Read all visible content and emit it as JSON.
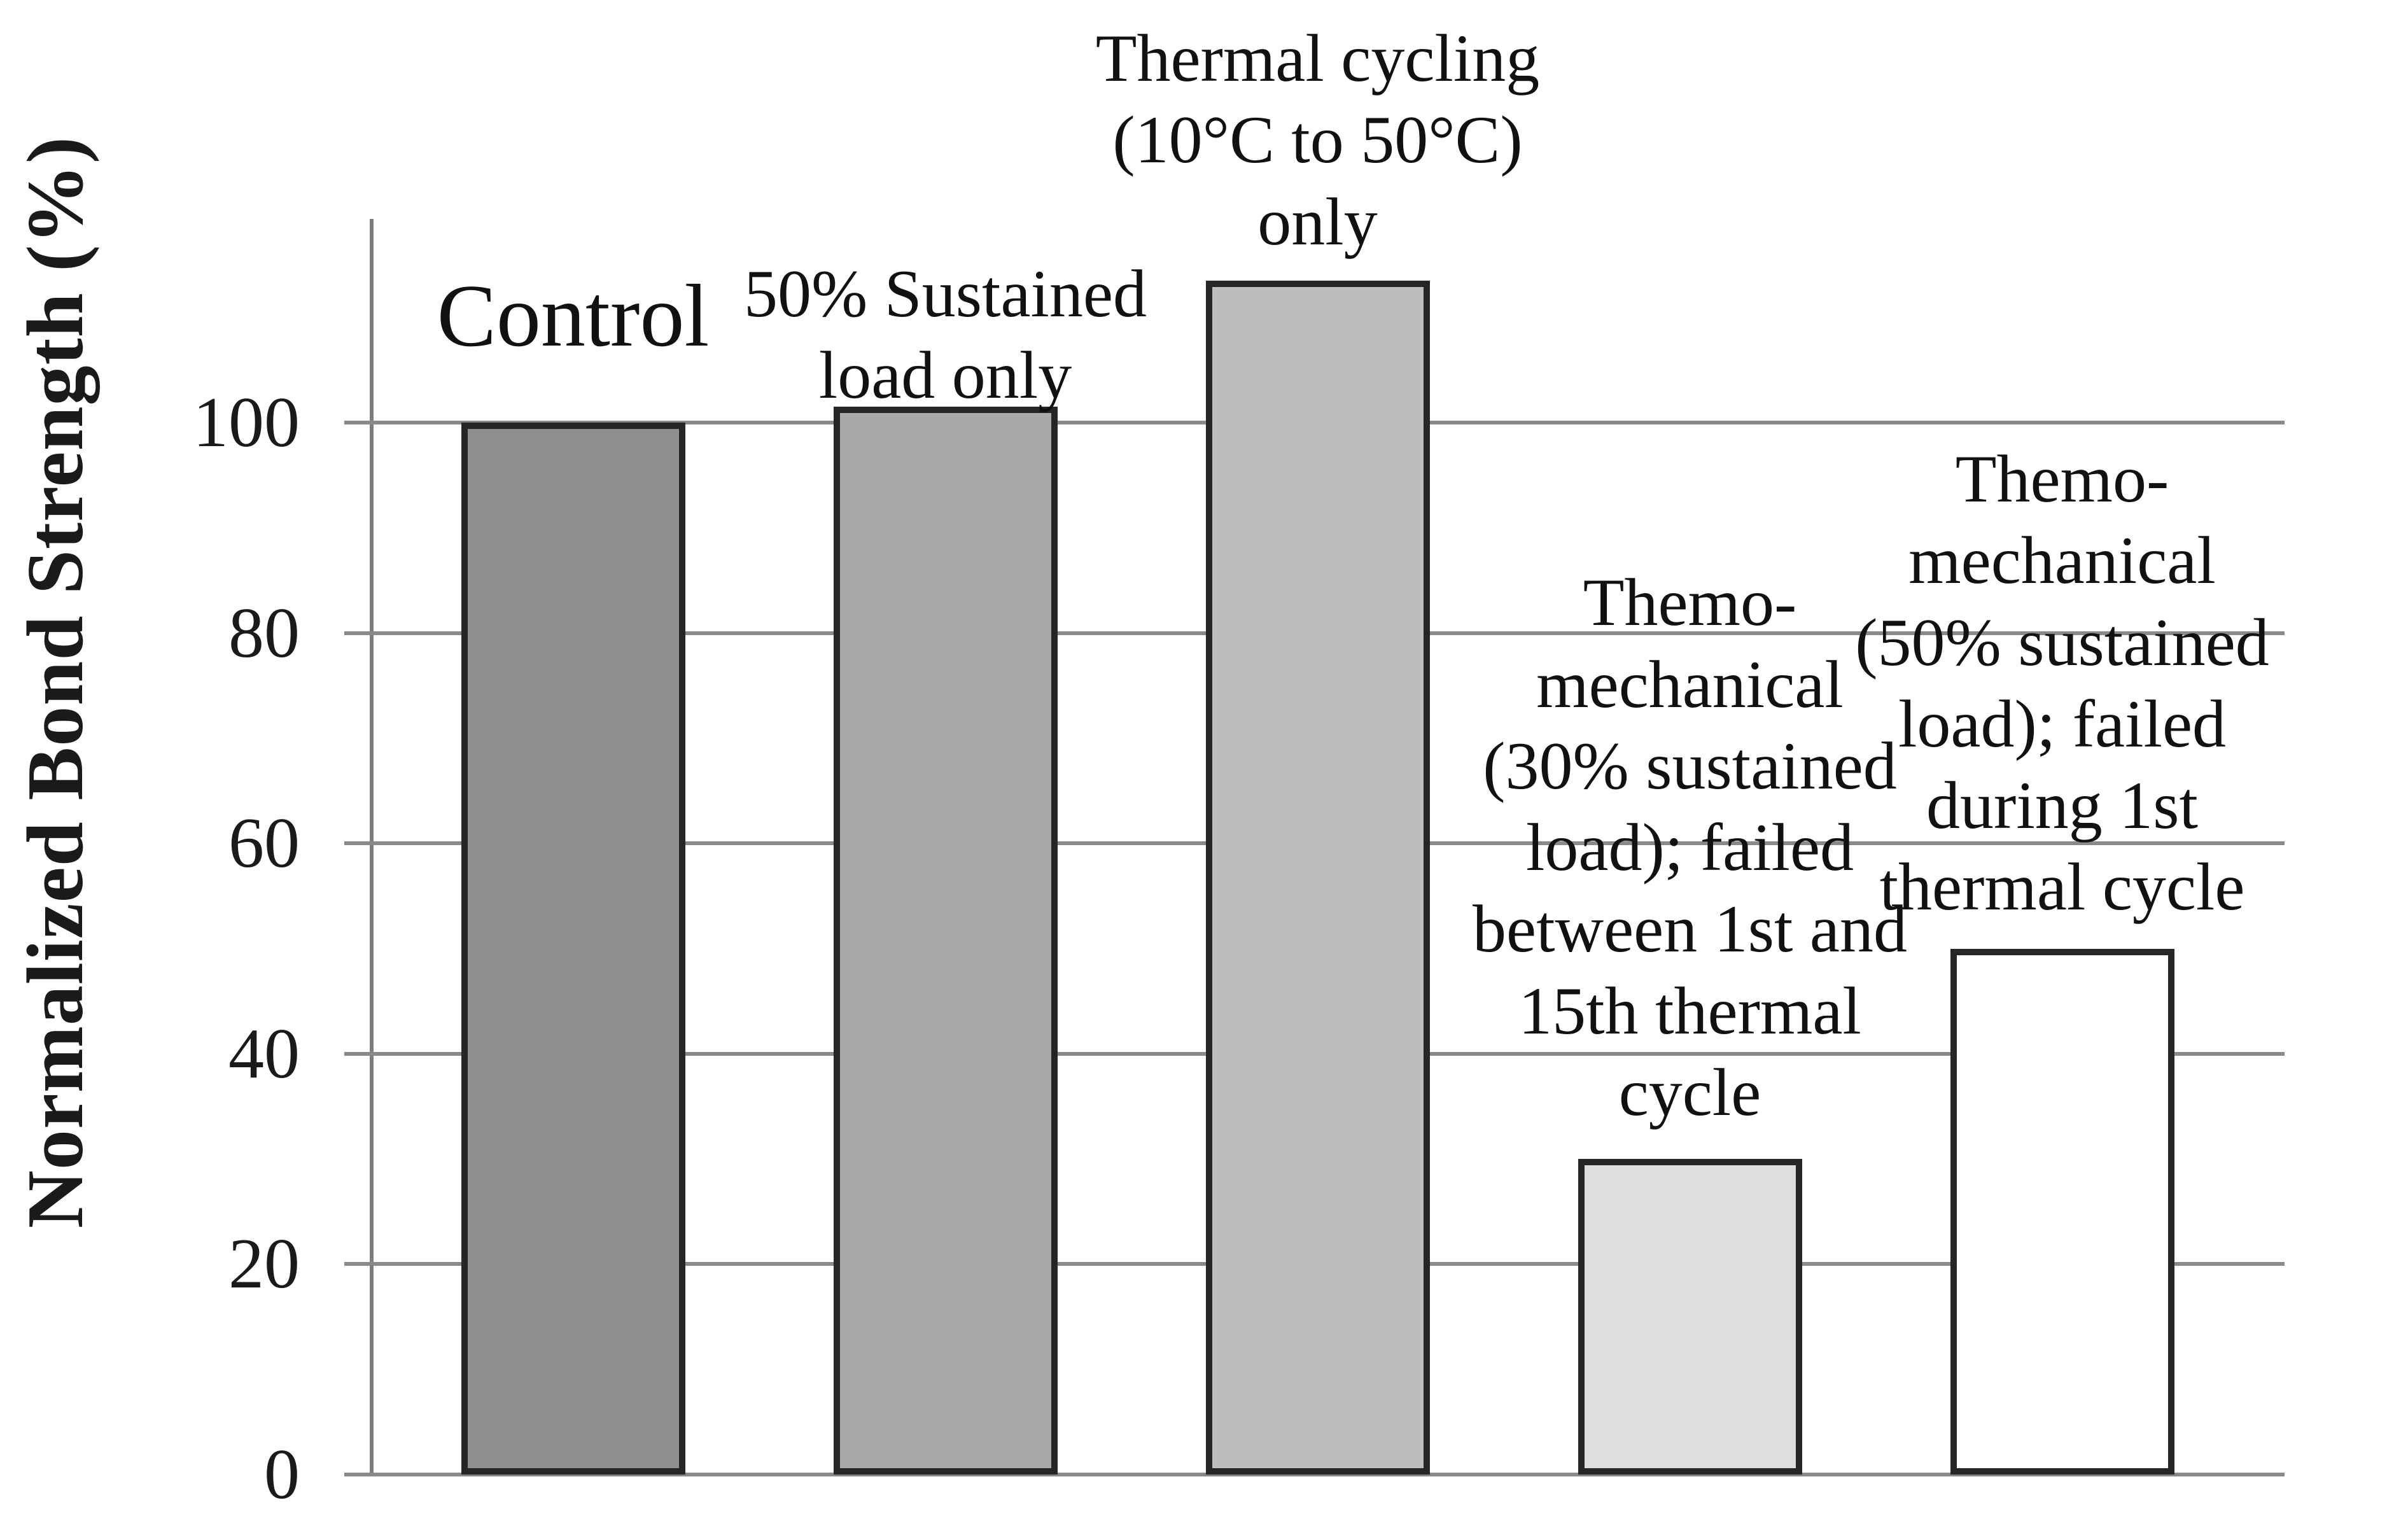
{
  "figure": {
    "background": "#ffffff",
    "text_color": "#1a1a1a"
  },
  "chart_data": {
    "type": "bar",
    "title": "",
    "xlabel": "",
    "ylabel": "Normalized Bond Strength (%)",
    "ylim": [
      0,
      119
    ],
    "ytick_interval": 20,
    "yticks": [
      "0",
      "20",
      "40",
      "60",
      "80",
      "100"
    ],
    "ytick_values": [
      0,
      20,
      40,
      60,
      80,
      100
    ],
    "grid": true,
    "legend_position": "none",
    "categories": [
      "Control",
      "50% Sustained\nload only",
      "Thermal cycling\n(10°C to 50°C)\nonly",
      "Themo-\nmechanical\n(30% sustained\nload); failed\nbetween 1st and\n15th thermal\ncycle",
      "Themo-\nmechanical\n(50% sustained\nload); failed\nduring 1st\nthermal cycle"
    ],
    "values": [
      100,
      101.5,
      113.5,
      30,
      50
    ],
    "bar_fill_colors": [
      "#8f8f8f",
      "#a9a9a9",
      "#bdbdbd",
      "#dedede",
      "#ffffff"
    ],
    "bar_border_color": "#262626",
    "gridline_color": "#8a8a8a",
    "axis_color": "#7e7e7e"
  }
}
